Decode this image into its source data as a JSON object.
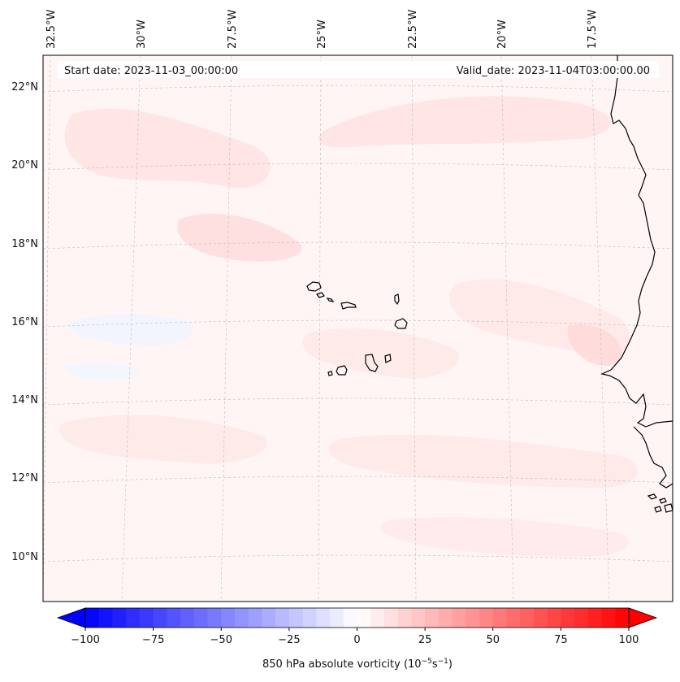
{
  "header": {
    "start_date": "Start date: 2023-11-03_00:00:00",
    "valid_date": "Valid_date: 2023-11-04T03:00:00.00"
  },
  "map": {
    "lon_labels": [
      "32.5°W",
      "30°W",
      "27.5°W",
      "25°W",
      "22.5°W",
      "20°W",
      "17.5°W"
    ],
    "lat_labels": [
      "22°N",
      "20°N",
      "18°N",
      "16°N",
      "14°N",
      "12°N",
      "10°N"
    ],
    "gridlines": true,
    "background_color": "#fff5f5",
    "coastline_color": "#000000"
  },
  "colorbar": {
    "label_prefix": "850 hPa absolute vorticity (10",
    "label_exp1": "−5",
    "label_mid": "s",
    "label_exp2": "−1",
    "label_suffix": ")",
    "min": -100,
    "max": 100,
    "ticks": [
      -100,
      -75,
      -50,
      -25,
      0,
      25,
      50,
      75,
      100
    ],
    "tick_labels": [
      "−100",
      "−75",
      "−50",
      "−25",
      "0",
      "25",
      "50",
      "75",
      "100"
    ],
    "neg_color": "#0000ff",
    "pos_color": "#ff0000",
    "extend": "both"
  }
}
